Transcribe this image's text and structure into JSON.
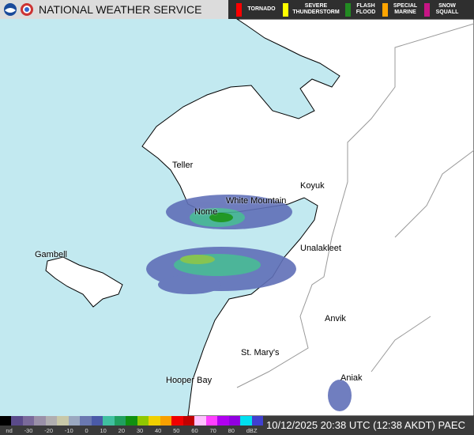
{
  "header": {
    "title": "NATIONAL WEATHER SERVICE",
    "logos": [
      "noaa-logo",
      "nws-logo"
    ]
  },
  "warnings_legend": [
    {
      "label": "TORNADO",
      "color": "#ff0000"
    },
    {
      "label": "SEVERE THUNDERSTORM",
      "color": "#ffff00"
    },
    {
      "label": "FLASH FLOOD",
      "color": "#228b22"
    },
    {
      "label": "SPECIAL MARINE",
      "color": "#ffa500"
    },
    {
      "label": "SNOW SQUALL",
      "color": "#c71585"
    }
  ],
  "cities": [
    {
      "name": "Teller"
    },
    {
      "name": "White Mountain"
    },
    {
      "name": "Koyuk"
    },
    {
      "name": "Nome"
    },
    {
      "name": "Gambell"
    },
    {
      "name": "Unalakleet"
    },
    {
      "name": "Anvik"
    },
    {
      "name": "St. Mary's"
    },
    {
      "name": "Aniak"
    },
    {
      "name": "Hooper Bay"
    }
  ],
  "colors": {
    "water": "#c2e9f0",
    "land": "#ffffff"
  },
  "scale": {
    "ticks": [
      "nd",
      "-30",
      "-20",
      "-10",
      "0",
      "10",
      "20",
      "30",
      "40",
      "50",
      "60",
      "70",
      "80",
      "dBZ"
    ],
    "colors": [
      "#000000",
      "#5a4a8a",
      "#7a6a9a",
      "#9a90a8",
      "#b0aeb0",
      "#c8c8a8",
      "#9aa8c0",
      "#6a78b0",
      "#4a5aa8",
      "#40c0a0",
      "#20a060",
      "#109010",
      "#90c800",
      "#f0d000",
      "#f8a000",
      "#f00000",
      "#c00000",
      "#ffc0ff",
      "#ff40ff",
      "#b000f0",
      "#9000e0",
      "#00e0f0",
      "#4040d0"
    ]
  },
  "timestamp": "10/12/2025 20:38 UTC (12:38 AKDT) PAEC"
}
